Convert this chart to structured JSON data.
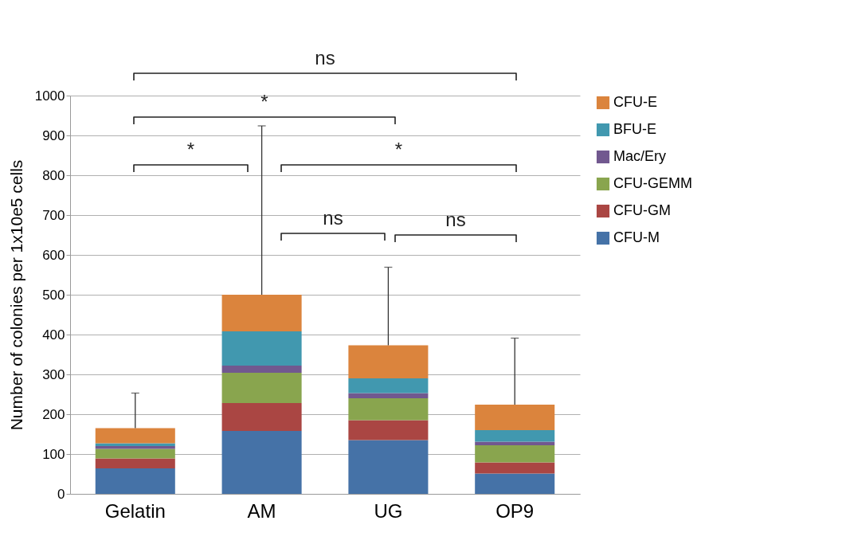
{
  "chart_data": {
    "type": "bar",
    "stacked": true,
    "categories": [
      "Gelatin",
      "AM",
      "UG",
      "OP9"
    ],
    "ylabel": "Number of colonies per 1x10e5 cells",
    "ylim": [
      0,
      1000
    ],
    "yticks": [
      0,
      100,
      200,
      300,
      400,
      500,
      600,
      700,
      800,
      900,
      1000
    ],
    "grid": "y",
    "legend": "right",
    "series": [
      {
        "name": "CFU-M",
        "color": "#4572a7",
        "values": [
          64,
          158,
          135,
          51
        ]
      },
      {
        "name": "CFU-GM",
        "color": "#aa4643",
        "values": [
          25,
          70,
          50,
          28
        ]
      },
      {
        "name": "CFU-GEMM",
        "color": "#89a54e",
        "values": [
          24,
          76,
          55,
          43
        ]
      },
      {
        "name": "Mac/Ery",
        "color": "#71588f",
        "values": [
          7,
          18,
          13,
          9
        ]
      },
      {
        "name": "BFU-E",
        "color": "#4198af",
        "values": [
          7,
          86,
          37,
          29
        ]
      },
      {
        "name": "CFU-E",
        "color": "#db843d",
        "values": [
          38,
          92,
          83,
          64
        ],
        "errors": [
          [
            165,
            253
          ],
          [
            500,
            924
          ],
          [
            373,
            569
          ],
          [
            224,
            391
          ]
        ]
      }
    ],
    "annotations": [
      "ns",
      "*",
      "*",
      "*",
      "ns",
      "ns"
    ]
  }
}
